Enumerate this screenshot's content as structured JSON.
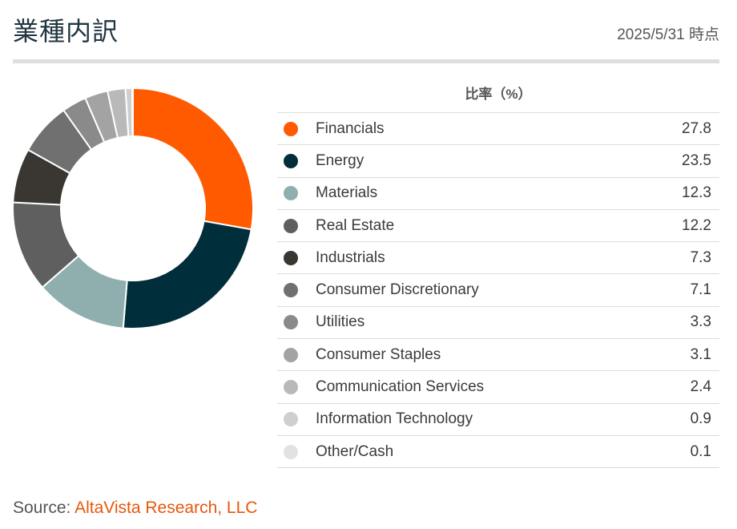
{
  "header": {
    "title": "業種内訳",
    "as_of": "2025/5/31 時点"
  },
  "table": {
    "column_header": "比率（%）"
  },
  "colors": [
    "#ff5a00",
    "#002e3a",
    "#8fafaf",
    "#5f5f5f",
    "#3a3632",
    "#707070",
    "#8a8a8a",
    "#a3a3a3",
    "#b9b9b9",
    "#cfcfcf",
    "#e2e2e2"
  ],
  "chart_data": {
    "type": "pie",
    "categories": [
      "Financials",
      "Energy",
      "Materials",
      "Real Estate",
      "Industrials",
      "Consumer Discretionary",
      "Utilities",
      "Consumer Staples",
      "Communication Services",
      "Information Technology",
      "Other/Cash"
    ],
    "values": [
      27.8,
      23.5,
      12.3,
      12.2,
      7.3,
      7.1,
      3.3,
      3.1,
      2.4,
      0.9,
      0.1
    ],
    "display_values": [
      "27.8",
      "23.5",
      "12.3",
      "12.2",
      "7.3",
      "7.1",
      "3.3",
      "3.1",
      "2.4",
      "0.9",
      "0.1"
    ],
    "style": "donut",
    "legend": "right-table"
  },
  "footer": {
    "source_label": "Source: ",
    "source_name": "AltaVista Research, LLC"
  }
}
